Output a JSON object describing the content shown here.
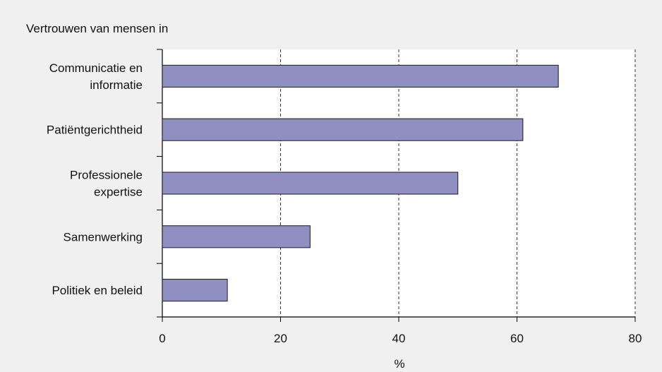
{
  "chart_data": {
    "type": "bar",
    "orientation": "horizontal",
    "title": "Vertrouwen van mensen in",
    "xlabel": "%",
    "ylabel": "",
    "categories": [
      [
        "Communicatie en",
        "informatie"
      ],
      [
        "Patiëntgerichtheid"
      ],
      [
        "Professionele",
        "expertise"
      ],
      [
        "Samenwerking"
      ],
      [
        "Politiek en beleid"
      ]
    ],
    "values": [
      67,
      61,
      50,
      25,
      11
    ],
    "xlim": [
      0,
      80
    ],
    "xticks": [
      "0",
      "20",
      "40",
      "60",
      "80"
    ],
    "grid": "vertical-dashed",
    "legend": "none",
    "colors": {
      "bar": "#8f8fc2",
      "bar_edge": "#1a1a1a",
      "plot_bg": "#ffffff",
      "page_bg": "#f0f0f1",
      "grid": "#333333"
    }
  }
}
